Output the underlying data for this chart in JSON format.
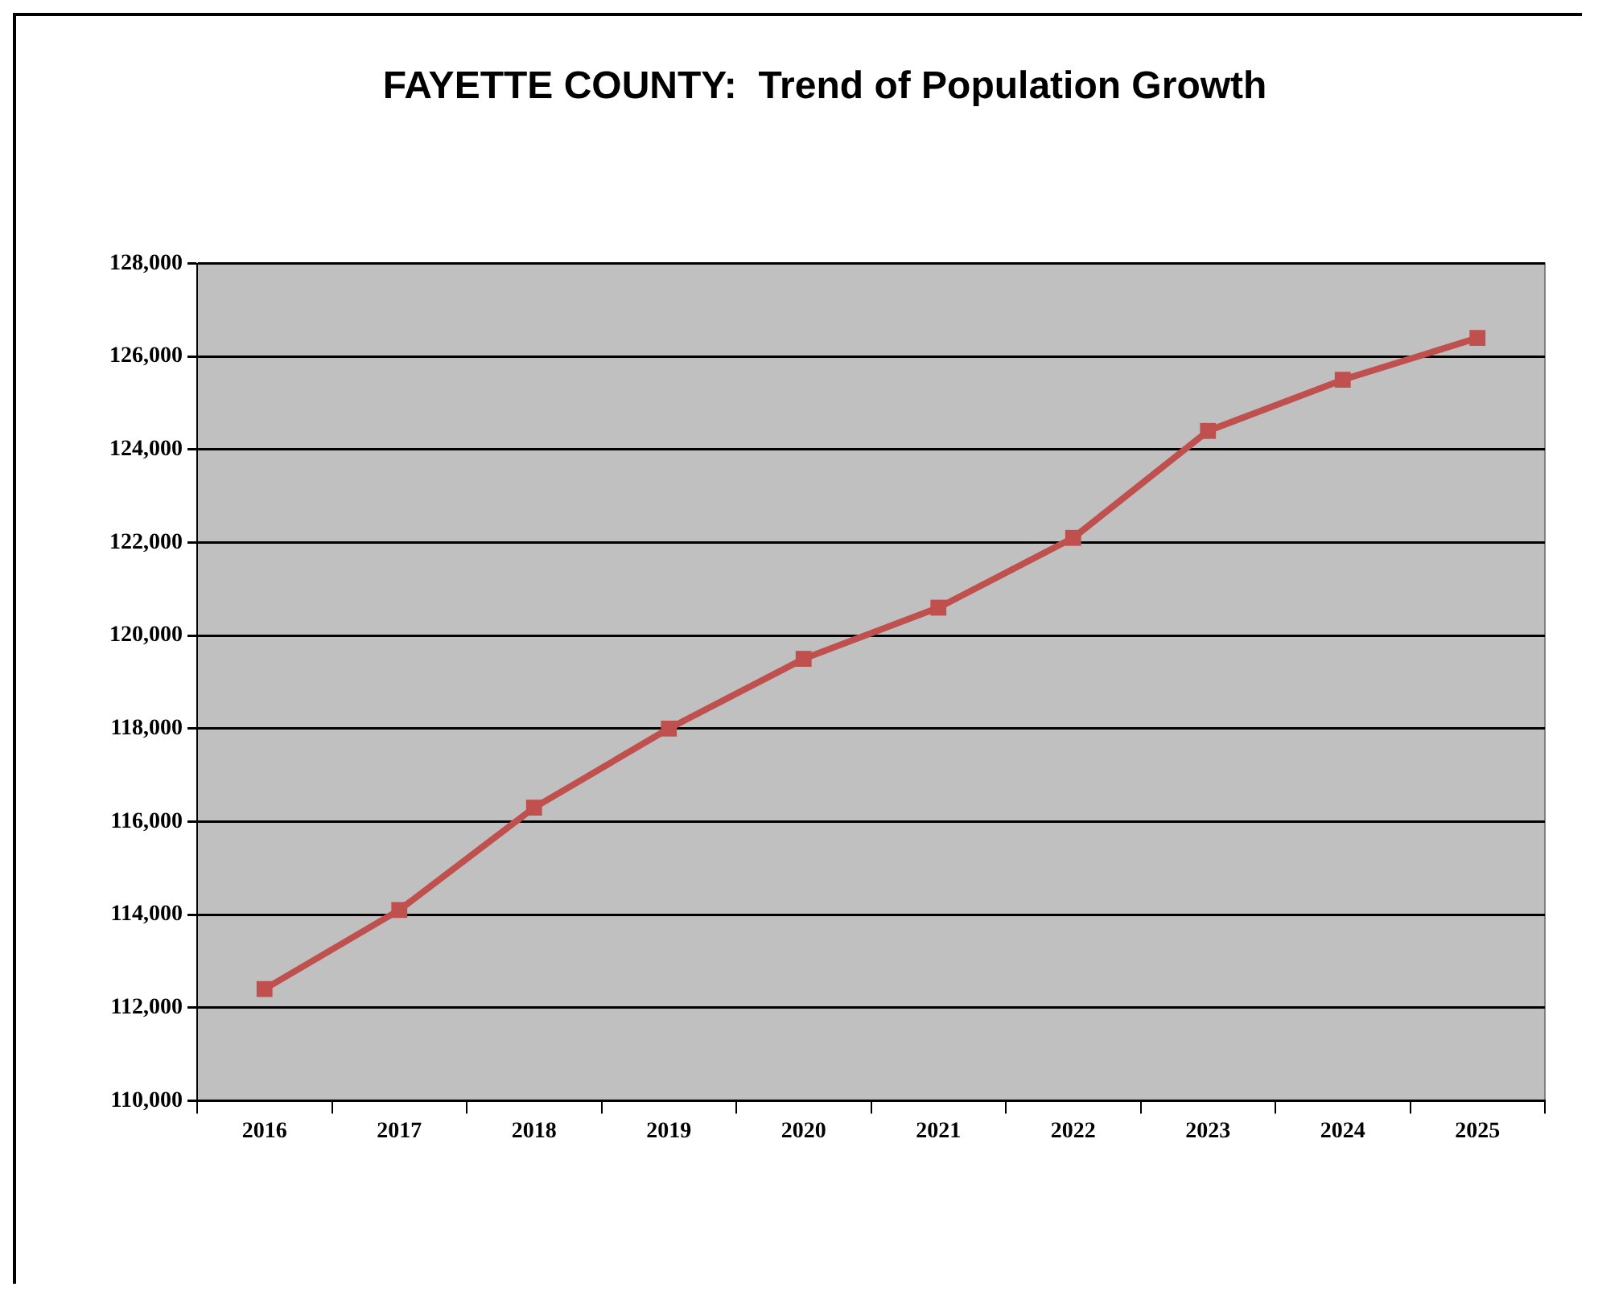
{
  "chart_data": {
    "type": "line",
    "title": "FAYETTE COUNTY:  Trend of Population Growth",
    "categories": [
      "2016",
      "2017",
      "2018",
      "2019",
      "2020",
      "2021",
      "2022",
      "2023",
      "2024",
      "2025"
    ],
    "series": [
      {
        "color": "#c0504d",
        "values": [
          112400,
          114100,
          116300,
          118000,
          119500,
          120600,
          122100,
          124400,
          125500,
          126400
        ]
      }
    ],
    "ylim": [
      110000,
      128000
    ],
    "yticks": [
      {
        "value": 110000,
        "label": "110,000"
      },
      {
        "value": 112000,
        "label": "112,000"
      },
      {
        "value": 114000,
        "label": "114,000"
      },
      {
        "value": 116000,
        "label": "116,000"
      },
      {
        "value": 118000,
        "label": "118,000"
      },
      {
        "value": 120000,
        "label": "120,000"
      },
      {
        "value": 122000,
        "label": "122,000"
      },
      {
        "value": 124000,
        "label": "124,000"
      },
      {
        "value": 126000,
        "label": "126,000"
      },
      {
        "value": 128000,
        "label": "128,000"
      }
    ],
    "grid": "y",
    "legend": false,
    "marker": "square",
    "line_style": "solid"
  }
}
